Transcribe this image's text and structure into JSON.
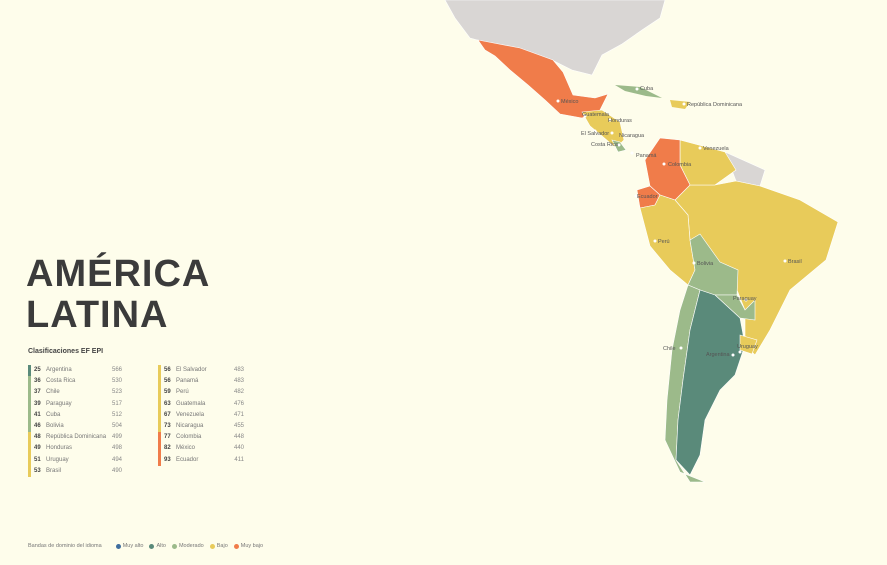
{
  "title_line1": "AMÉRICA",
  "title_line2": "LATINA",
  "subtitle": "Clasificaciones EF EPI",
  "colors": {
    "muy_alto": "#3f6e9e",
    "alto": "#5a8a7a",
    "moderado": "#9cba8a",
    "bajo": "#e8cb5a",
    "muy_bajo": "#f07c4a",
    "no_data": "#d9d6d4"
  },
  "rankings_col1": [
    {
      "rank": "25",
      "country": "Argentina",
      "score": "566",
      "band": "alto"
    },
    {
      "rank": "36",
      "country": "Costa Rica",
      "score": "530",
      "band": "moderado"
    },
    {
      "rank": "37",
      "country": "Chile",
      "score": "523",
      "band": "moderado"
    },
    {
      "rank": "39",
      "country": "Paraguay",
      "score": "517",
      "band": "moderado"
    },
    {
      "rank": "41",
      "country": "Cuba",
      "score": "512",
      "band": "moderado"
    },
    {
      "rank": "46",
      "country": "Bolivia",
      "score": "504",
      "band": "moderado"
    },
    {
      "rank": "48",
      "country": "República Dominicana",
      "score": "499",
      "band": "bajo"
    },
    {
      "rank": "49",
      "country": "Honduras",
      "score": "498",
      "band": "bajo"
    },
    {
      "rank": "51",
      "country": "Uruguay",
      "score": "494",
      "band": "bajo"
    },
    {
      "rank": "53",
      "country": "Brasil",
      "score": "490",
      "band": "bajo"
    }
  ],
  "rankings_col2": [
    {
      "rank": "56",
      "country": "El Salvador",
      "score": "483",
      "band": "bajo"
    },
    {
      "rank": "56",
      "country": "Panamá",
      "score": "483",
      "band": "bajo"
    },
    {
      "rank": "59",
      "country": "Perú",
      "score": "482",
      "band": "bajo"
    },
    {
      "rank": "63",
      "country": "Guatemala",
      "score": "476",
      "band": "bajo"
    },
    {
      "rank": "67",
      "country": "Venezuela",
      "score": "471",
      "band": "bajo"
    },
    {
      "rank": "73",
      "country": "Nicaragua",
      "score": "455",
      "band": "bajo"
    },
    {
      "rank": "77",
      "country": "Colombia",
      "score": "448",
      "band": "muy_bajo"
    },
    {
      "rank": "82",
      "country": "México",
      "score": "440",
      "band": "muy_bajo"
    },
    {
      "rank": "93",
      "country": "Ecuador",
      "score": "411",
      "band": "muy_bajo"
    }
  ],
  "legend": {
    "title": "Bandas de dominio del idioma",
    "items": [
      {
        "label": "Muy alto",
        "band": "muy_alto"
      },
      {
        "label": "Alto",
        "band": "alto"
      },
      {
        "label": "Moderado",
        "band": "moderado"
      },
      {
        "label": "Bajo",
        "band": "bajo"
      },
      {
        "label": "Muy bajo",
        "band": "muy_bajo"
      }
    ]
  },
  "map_labels": {
    "mexico": "México",
    "cuba": "Cuba",
    "rep_dom": "República Dominicana",
    "guatemala": "Guatemala",
    "honduras": "Honduras",
    "el_salvador": "El Salvador",
    "nicaragua": "Nicaragua",
    "costa_rica": "Costa Rica",
    "panama": "Panamá",
    "venezuela": "Venezuela",
    "colombia": "Colombia",
    "ecuador": "Ecuador",
    "peru": "Perú",
    "brasil": "Brasil",
    "bolivia": "Bolivia",
    "paraguay": "Paraguay",
    "chile": "Chile",
    "argentina": "Argentina",
    "uruguay": "Uruguay"
  }
}
